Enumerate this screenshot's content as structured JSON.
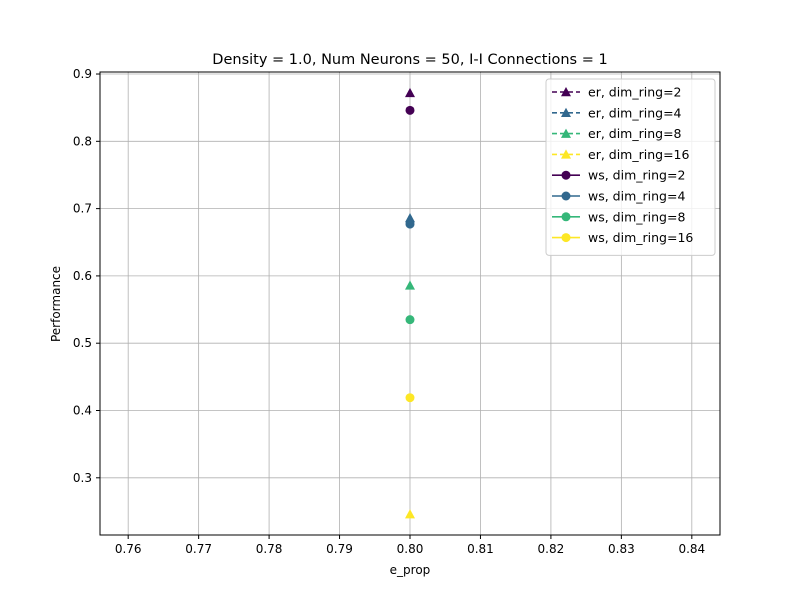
{
  "chart_data": {
    "type": "line",
    "title": "Density = 1.0, Num Neurons = 50, I-I Connections = 1",
    "xlabel": "e_prop",
    "ylabel": "Performance",
    "xlim": [
      0.756,
      0.844
    ],
    "ylim": [
      0.215,
      0.903
    ],
    "x_ticks": [
      "0.76",
      "0.77",
      "0.78",
      "0.79",
      "0.80",
      "0.81",
      "0.82",
      "0.83",
      "0.84"
    ],
    "y_ticks": [
      "0.3",
      "0.4",
      "0.5",
      "0.6",
      "0.7",
      "0.8",
      "0.9"
    ],
    "grid": true,
    "legend_position": "top-right",
    "series": [
      {
        "name": "er, dim_ring=2",
        "marker": "triangle",
        "linestyle": "dashed",
        "color": "#440154",
        "x": [
          0.8
        ],
        "y": [
          0.872
        ]
      },
      {
        "name": "er, dim_ring=4",
        "marker": "triangle",
        "linestyle": "dashed",
        "color": "#31688e",
        "x": [
          0.8
        ],
        "y": [
          0.686
        ]
      },
      {
        "name": "er, dim_ring=8",
        "marker": "triangle",
        "linestyle": "dashed",
        "color": "#35b779",
        "x": [
          0.8
        ],
        "y": [
          0.586
        ]
      },
      {
        "name": "er, dim_ring=16",
        "marker": "triangle",
        "linestyle": "dashed",
        "color": "#fde725",
        "x": [
          0.8
        ],
        "y": [
          0.246
        ]
      },
      {
        "name": "ws, dim_ring=2",
        "marker": "circle",
        "linestyle": "solid",
        "color": "#440154",
        "x": [
          0.8
        ],
        "y": [
          0.846
        ]
      },
      {
        "name": "ws, dim_ring=4",
        "marker": "circle",
        "linestyle": "solid",
        "color": "#31688e",
        "x": [
          0.8
        ],
        "y": [
          0.677
        ]
      },
      {
        "name": "ws, dim_ring=8",
        "marker": "circle",
        "linestyle": "solid",
        "color": "#35b779",
        "x": [
          0.8
        ],
        "y": [
          0.535
        ]
      },
      {
        "name": "ws, dim_ring=16",
        "marker": "circle",
        "linestyle": "solid",
        "color": "#fde725",
        "x": [
          0.8
        ],
        "y": [
          0.419
        ]
      }
    ]
  }
}
